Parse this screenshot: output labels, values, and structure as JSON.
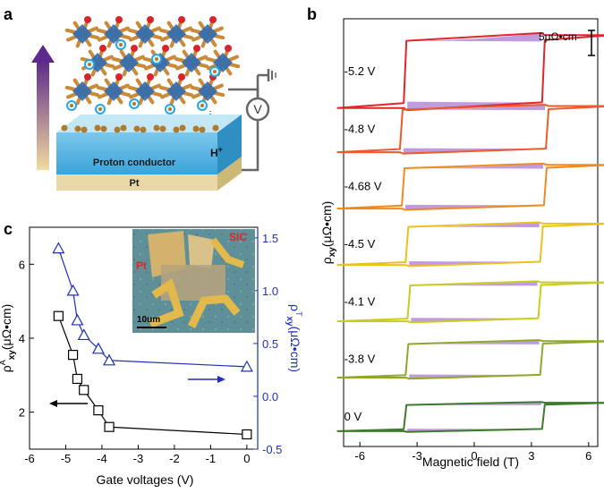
{
  "panel_a": {
    "letter": "a",
    "layer_label": "Proton conductor",
    "substrate_label": "Pt",
    "ion_label": "H",
    "ion_charge": "+",
    "meter_symbol": "V",
    "colors": {
      "conductor_top": "#bfe6f7",
      "conductor_front": "#4fb3e3",
      "pt_front": "#ead9a6",
      "arrow_top": "#5b2a8a",
      "arrow_bottom": "#f2dba0",
      "octahedron": "#2f6bb3",
      "ligand": "#c98a3a",
      "oxygen": "#d8252b",
      "proton": "#2aa7e0",
      "wire": "#666666"
    }
  },
  "panel_b": {
    "letter": "b",
    "scale_bar_label": "5μΩ•cm",
    "ylabel": "ρxy(μΩ•cm)",
    "xlabel": "Magnetic field (T)",
    "xticks": [
      "-6",
      "-3",
      "0",
      "3",
      "6"
    ],
    "fill_color": "#b58ad8",
    "curves": [
      {
        "label": "-5.2 V",
        "color": "#e0262b",
        "coercive_T": 3.7
      },
      {
        "label": "-4.8 V",
        "color": "#ee5a27",
        "coercive_T": 3.9
      },
      {
        "label": "-4.68 V",
        "color": "#ef8a20",
        "coercive_T": 3.8
      },
      {
        "label": "-4.5 V",
        "color": "#e9c21d",
        "coercive_T": 3.6
      },
      {
        "label": "-4.1 V",
        "color": "#c9cc1f",
        "coercive_T": 3.5
      },
      {
        "label": "-3.8 V",
        "color": "#8ea82a",
        "coercive_T": 3.6
      },
      {
        "label": "0 V",
        "color": "#3d7a2c",
        "coercive_T": 3.7
      }
    ]
  },
  "panel_c": {
    "letter": "c",
    "inset_labels": {
      "sic": "SIC",
      "pt": "Pt",
      "scale": "10um"
    },
    "chart_data": {
      "type": "scatter",
      "xlabel": "Gate voltages (V)",
      "xlim": [
        -6,
        0.3
      ],
      "xticks": [
        "-6",
        "-5",
        "-4",
        "-3",
        "-2",
        "-1",
        "0"
      ],
      "left_axis": {
        "label_main": "ρ",
        "label_sup": "A",
        "label_sub": "xy",
        "label_unit": "(μΩ•cm)",
        "ylim": [
          1,
          7
        ],
        "yticks": [
          "2",
          "4",
          "6"
        ],
        "color": "#000000"
      },
      "right_axis": {
        "label_main": "ρ",
        "label_sup": "T",
        "label_sub": "xy",
        "label_unit": "(μΩ•cm)",
        "ylim": [
          -0.5,
          1.6
        ],
        "yticks": [
          "-0.5",
          "0.0",
          "0.5",
          "1.0",
          "1.5"
        ],
        "color": "#1f2fb8"
      },
      "series": [
        {
          "axis": "left",
          "marker": "square",
          "x": [
            -5.2,
            -4.8,
            -4.68,
            -4.5,
            -4.1,
            -3.8,
            0
          ],
          "values": [
            4.6,
            3.55,
            2.9,
            2.6,
            2.05,
            1.6,
            1.4
          ]
        },
        {
          "axis": "right",
          "marker": "triangle",
          "x": [
            -5.2,
            -4.8,
            -4.68,
            -4.5,
            -4.1,
            -3.8,
            0
          ],
          "values": [
            1.4,
            1.0,
            0.72,
            0.58,
            0.45,
            0.34,
            0.28
          ]
        }
      ]
    }
  }
}
